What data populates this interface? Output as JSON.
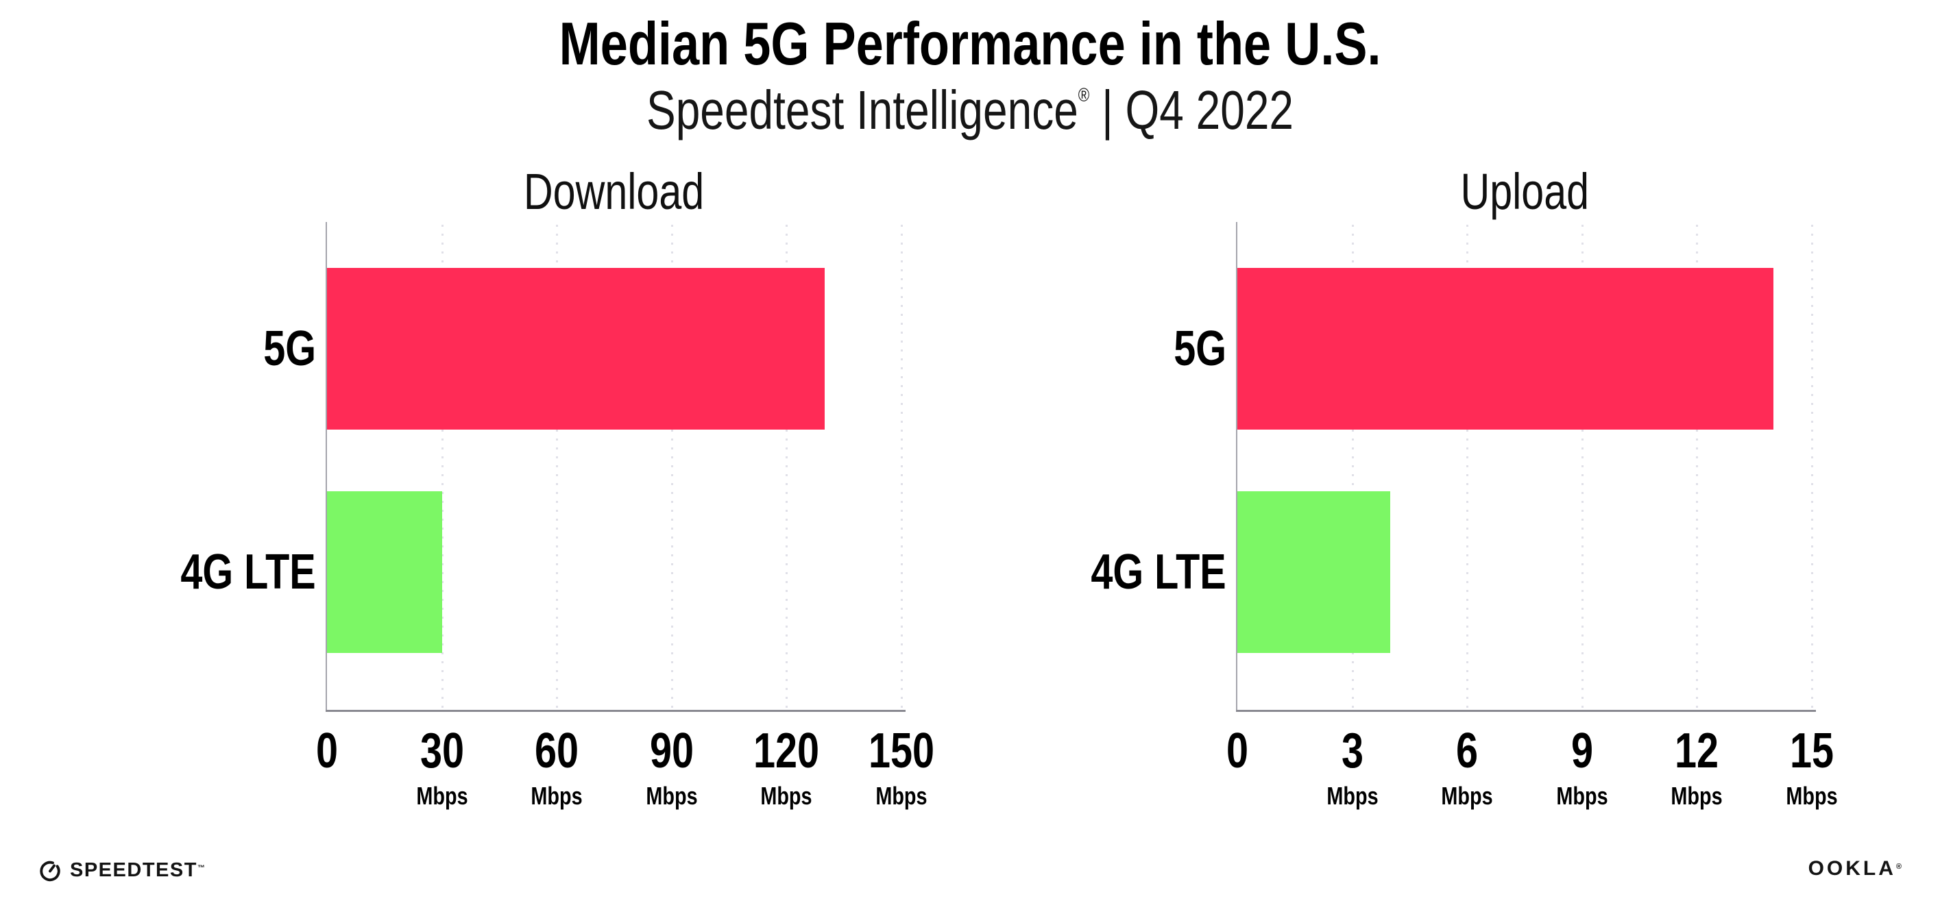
{
  "page": {
    "title": "Median 5G Performance in the U.S.",
    "subtitle": {
      "brand": "Speedtest Intelligence",
      "reg": "®",
      "rest": " | Q4 2022"
    }
  },
  "colors": {
    "bar_5g": "#FF2B56",
    "bar_4g_lte": "#7CF765",
    "y_axis": "#A4A4AC",
    "x_axis": "#8A8A92",
    "gridline": "#E0E0E8",
    "text": "#000000"
  },
  "chart_data": [
    {
      "type": "bar",
      "orientation": "horizontal",
      "title": "Download",
      "categories": [
        "5G",
        "4G LTE"
      ],
      "values": [
        130,
        30
      ],
      "unit": "Mbps",
      "xlim": [
        0,
        150
      ],
      "xticks": [
        0,
        30,
        60,
        90,
        120,
        150
      ],
      "bar_colors": [
        "#FF2B56",
        "#7CF765"
      ],
      "grid": "dotted-vertical",
      "legend": "none"
    },
    {
      "type": "bar",
      "orientation": "horizontal",
      "title": "Upload",
      "categories": [
        "5G",
        "4G LTE"
      ],
      "values": [
        14,
        4
      ],
      "unit": "Mbps",
      "xlim": [
        0,
        15
      ],
      "xticks": [
        0,
        3,
        6,
        9,
        12,
        15
      ],
      "bar_colors": [
        "#FF2B56",
        "#7CF765"
      ],
      "grid": "dotted-vertical",
      "legend": "none"
    }
  ],
  "footer": {
    "speedtest_wordmark": "SPEEDTEST",
    "speedtest_mark": "™",
    "gauge_icon": "speedometer-gauge-icon",
    "ookla_wordmark": "OOKLA",
    "ookla_mark": "®"
  }
}
